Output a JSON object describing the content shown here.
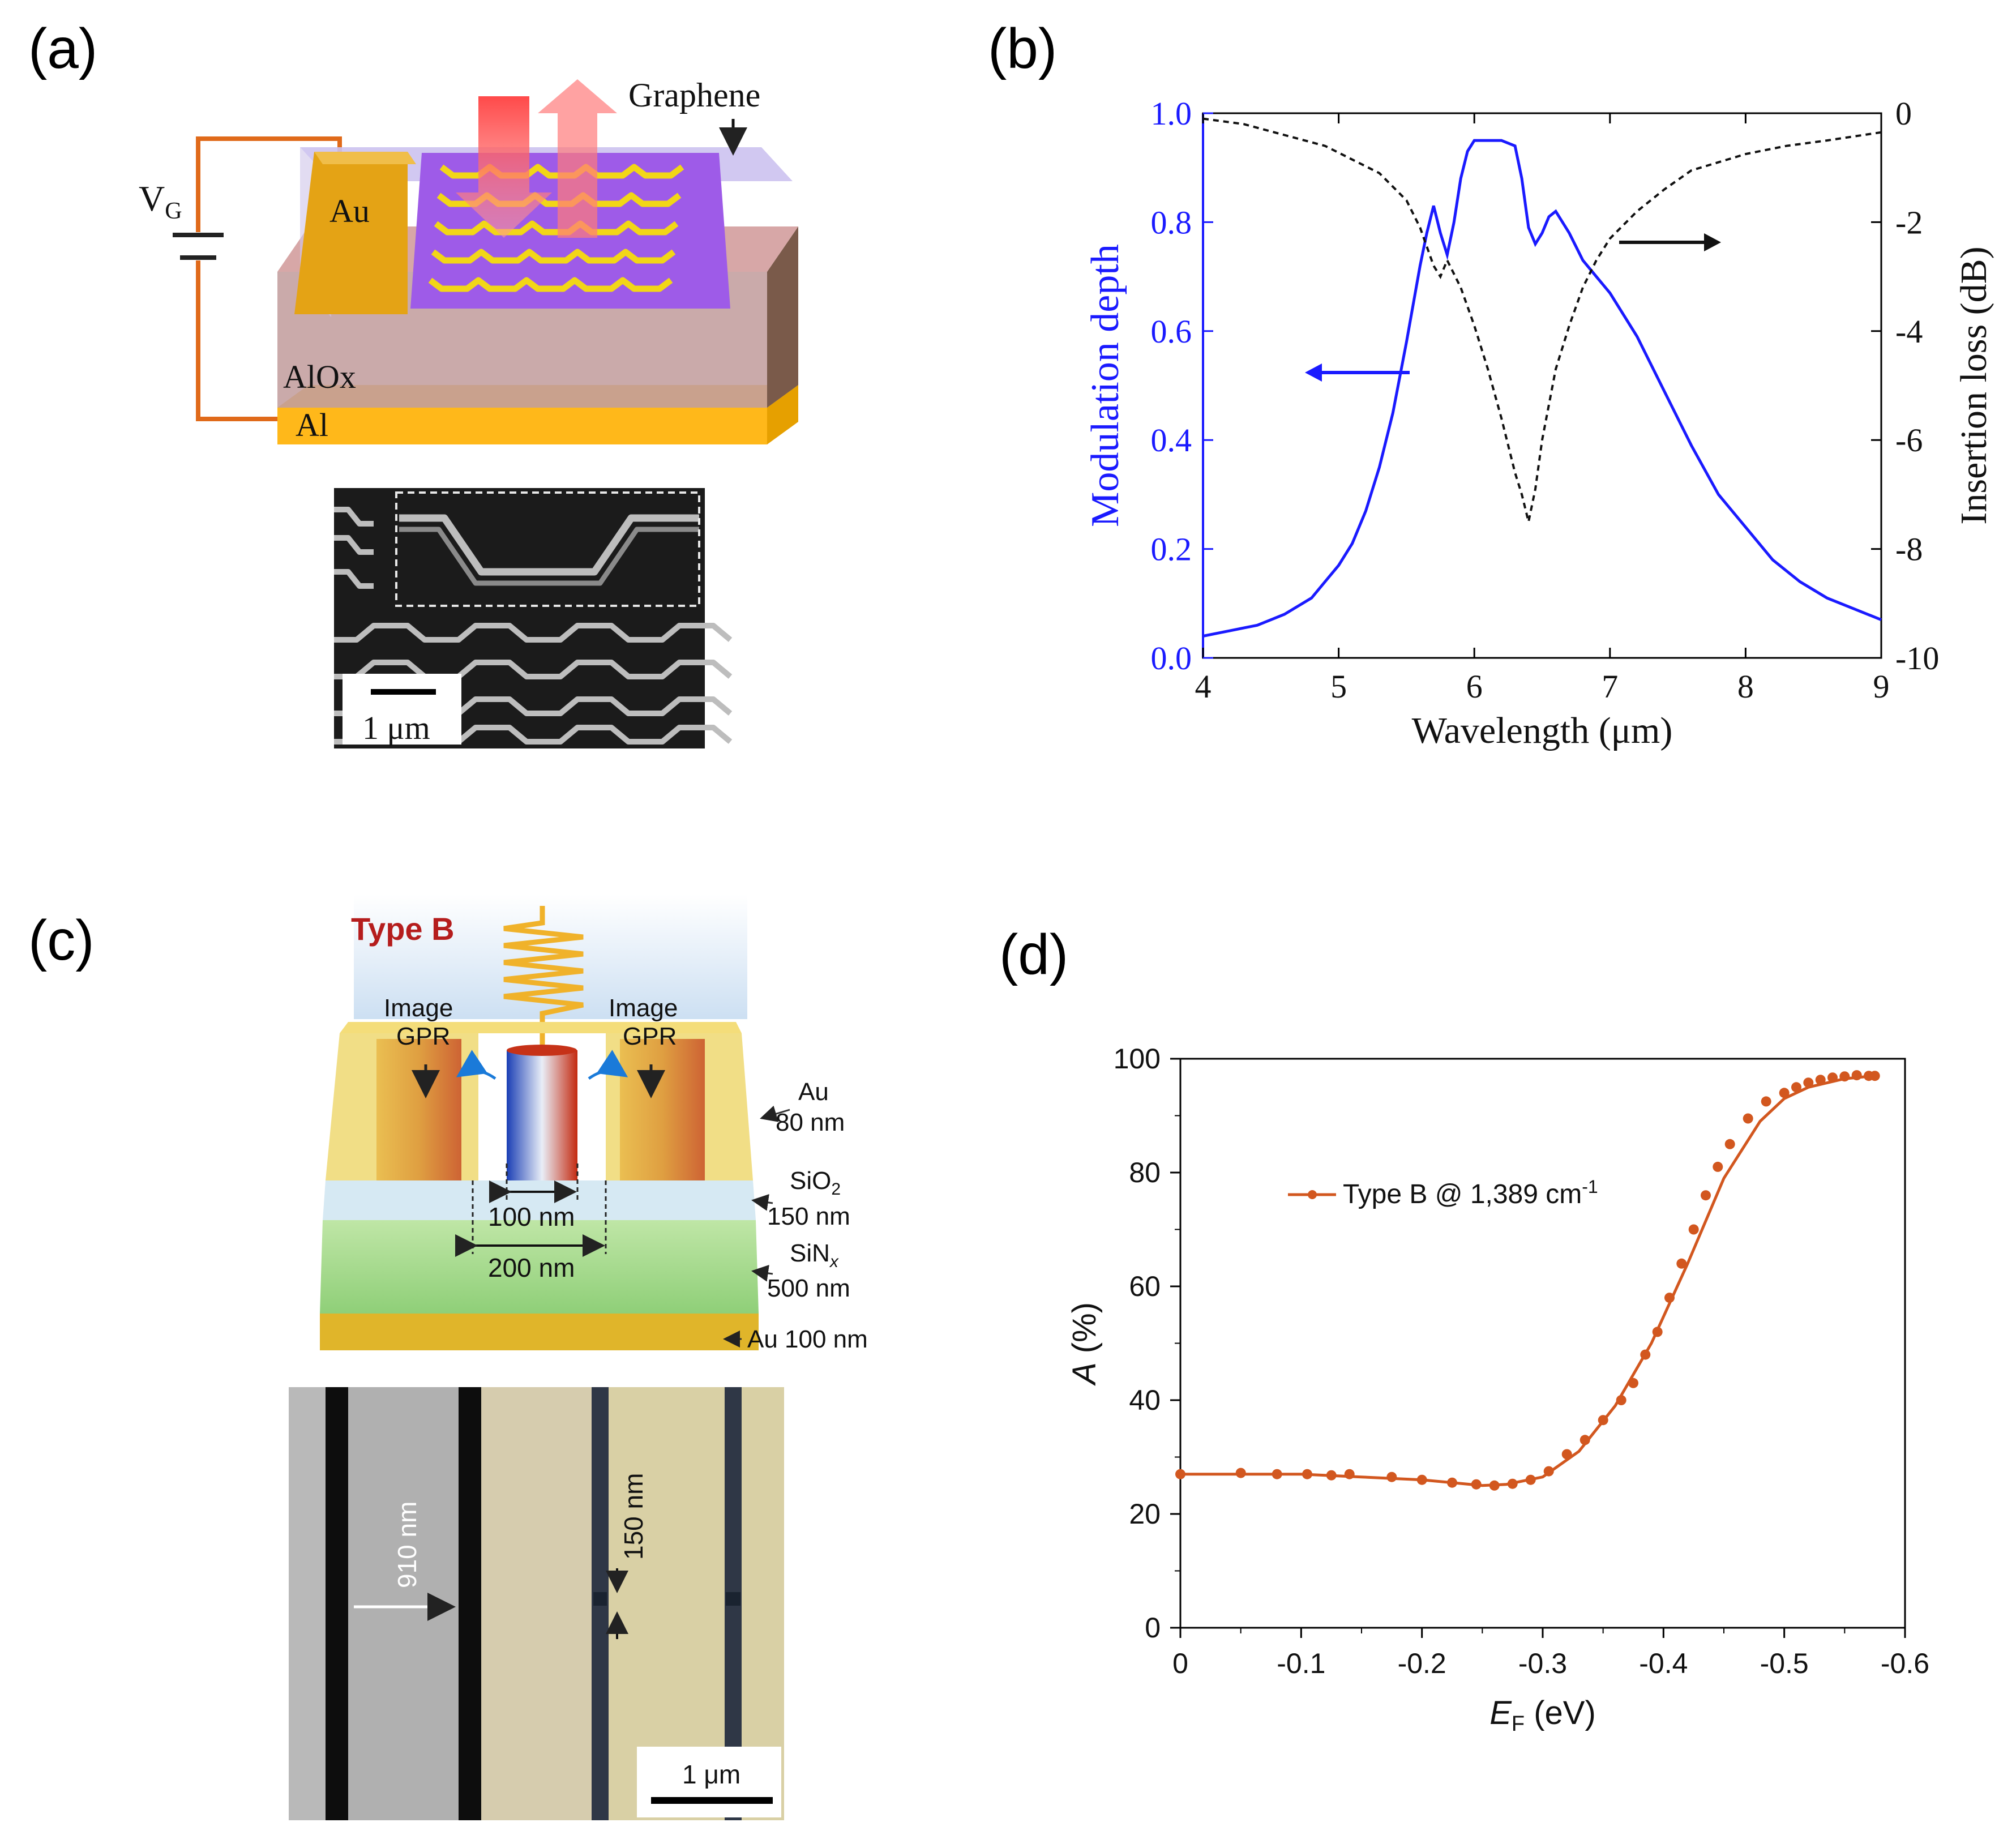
{
  "panels": {
    "a": {
      "label": "(a)",
      "schematic": {
        "vg": "V",
        "vg_sub": "G",
        "au": "Au",
        "graphene": "Graphene",
        "alox": "AlOx",
        "al": "Al"
      },
      "sem": {
        "scale": "1 μm"
      }
    },
    "b": {
      "label": "(b)",
      "arrow_left_label": "",
      "arrow_right_label": ""
    },
    "c": {
      "label": "(c)",
      "type": "Type B",
      "image_left": "Image",
      "gpr_left": "GPR",
      "image_right": "Image",
      "gpr_right": "GPR",
      "au_top": "Au",
      "au_top_thick": "80 nm",
      "sio2_a": "SiO",
      "sio2_b": "2",
      "sio2_thick": "150 nm",
      "sin_a": "SiN",
      "sin_b": "x",
      "sin_thick": "500 nm",
      "au_bottom": "Au 100 nm",
      "w100": "100 nm",
      "w200": "200 nm",
      "sem": {
        "w910": "910 nm",
        "w150": "150 nm",
        "scale": "1 μm"
      }
    },
    "d": {
      "label": "(d)"
    }
  },
  "colors": {
    "blue": "#1a1aff",
    "orange": "#d2571f",
    "black": "#000000"
  },
  "chart_data": [
    {
      "panel": "b",
      "type": "line",
      "xlabel": "Wavelength (μm)",
      "ylabel_left": "Modulation depth",
      "ylabel_right": "Insertion loss (dB)",
      "xlim": [
        4,
        9
      ],
      "ylim_left": [
        0,
        1
      ],
      "ylim_right": [
        -10,
        0
      ],
      "xticks": [
        "4",
        "5",
        "6",
        "7",
        "8",
        "9"
      ],
      "yticks_left": [
        "0.0",
        "0.2",
        "0.4",
        "0.6",
        "0.8",
        "1.0"
      ],
      "yticks_right": [
        "0",
        "-2",
        "-4",
        "-6",
        "-8",
        "-10"
      ],
      "series": [
        {
          "name": "Modulation depth",
          "axis": "left",
          "style": "solid-blue",
          "x": [
            4.0,
            4.1,
            4.2,
            4.3,
            4.4,
            4.5,
            4.6,
            4.7,
            4.8,
            4.9,
            5.0,
            5.1,
            5.2,
            5.3,
            5.4,
            5.5,
            5.6,
            5.65,
            5.7,
            5.75,
            5.8,
            5.85,
            5.9,
            5.95,
            6.0,
            6.1,
            6.2,
            6.3,
            6.35,
            6.4,
            6.45,
            6.5,
            6.55,
            6.6,
            6.7,
            6.8,
            6.9,
            7.0,
            7.2,
            7.4,
            7.6,
            7.8,
            8.0,
            8.2,
            8.4,
            8.6,
            8.8,
            9.0
          ],
          "y": [
            0.04,
            0.045,
            0.05,
            0.055,
            0.06,
            0.07,
            0.08,
            0.095,
            0.11,
            0.14,
            0.17,
            0.21,
            0.27,
            0.35,
            0.45,
            0.58,
            0.72,
            0.78,
            0.83,
            0.78,
            0.74,
            0.8,
            0.88,
            0.93,
            0.95,
            0.95,
            0.95,
            0.94,
            0.88,
            0.79,
            0.76,
            0.78,
            0.81,
            0.82,
            0.78,
            0.73,
            0.7,
            0.67,
            0.59,
            0.49,
            0.39,
            0.3,
            0.24,
            0.18,
            0.14,
            0.11,
            0.09,
            0.07
          ]
        },
        {
          "name": "Insertion loss",
          "axis": "right",
          "style": "dashed-black",
          "x": [
            4.0,
            4.3,
            4.6,
            4.9,
            5.1,
            5.3,
            5.5,
            5.6,
            5.7,
            5.75,
            5.8,
            5.9,
            6.0,
            6.1,
            6.2,
            6.3,
            6.35,
            6.4,
            6.45,
            6.5,
            6.6,
            6.7,
            6.8,
            6.9,
            7.0,
            7.2,
            7.4,
            7.6,
            7.8,
            8.0,
            8.3,
            8.6,
            9.0
          ],
          "y": [
            -0.1,
            -0.2,
            -0.4,
            -0.6,
            -0.85,
            -1.1,
            -1.6,
            -2.1,
            -2.8,
            -3.0,
            -2.7,
            -3.2,
            -3.9,
            -4.7,
            -5.6,
            -6.6,
            -7.0,
            -7.5,
            -6.9,
            -6.0,
            -4.7,
            -3.9,
            -3.2,
            -2.7,
            -2.3,
            -1.8,
            -1.4,
            -1.05,
            -0.9,
            -0.75,
            -0.6,
            -0.5,
            -0.35
          ]
        }
      ]
    },
    {
      "panel": "d",
      "type": "line",
      "xlabel": "E",
      "xlabel_sub": "F",
      "xlabel_unit": " (eV)",
      "ylabel": "A",
      "ylabel_unit": " (%)",
      "xlim": [
        0,
        -0.6
      ],
      "ylim": [
        0,
        100
      ],
      "xticks": [
        "0",
        "-0.1",
        "-0.2",
        "-0.3",
        "-0.4",
        "-0.5",
        "-0.6"
      ],
      "yticks": [
        "0",
        "20",
        "40",
        "60",
        "80",
        "100"
      ],
      "legend": "Type B @ 1,389 cm",
      "legend_sup": "-1",
      "fit": {
        "x": [
          0,
          -0.05,
          -0.1,
          -0.15,
          -0.2,
          -0.25,
          -0.27,
          -0.3,
          -0.33,
          -0.36,
          -0.39,
          -0.42,
          -0.45,
          -0.48,
          -0.5,
          -0.52,
          -0.55,
          -0.575
        ],
        "y": [
          27,
          27,
          27,
          26.5,
          26,
          25,
          25.2,
          26.5,
          31,
          39,
          50,
          64,
          79,
          89,
          93,
          95,
          96.5,
          97
        ]
      },
      "points": {
        "x": [
          0.0,
          -0.05,
          -0.08,
          -0.105,
          -0.125,
          -0.14,
          -0.175,
          -0.2,
          -0.225,
          -0.245,
          -0.26,
          -0.275,
          -0.29,
          -0.305,
          -0.32,
          -0.335,
          -0.35,
          -0.365,
          -0.375,
          -0.385,
          -0.395,
          -0.405,
          -0.415,
          -0.425,
          -0.435,
          -0.445,
          -0.455,
          -0.47,
          -0.485,
          -0.5,
          -0.51,
          -0.52,
          -0.53,
          -0.54,
          -0.55,
          -0.56,
          -0.57,
          -0.575
        ],
        "y": [
          27,
          27.2,
          27,
          27,
          26.8,
          27,
          26.5,
          26,
          25.5,
          25.2,
          25,
          25.3,
          26,
          27.5,
          30.5,
          33,
          36.5,
          40,
          43,
          48,
          52,
          58,
          64,
          70,
          76,
          81,
          85,
          89.5,
          92.5,
          94,
          95,
          95.8,
          96.3,
          96.7,
          96.9,
          97.1,
          97,
          97
        ]
      }
    }
  ]
}
